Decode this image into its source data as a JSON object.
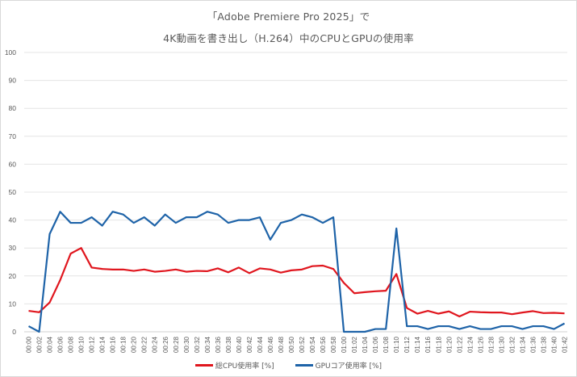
{
  "title": {
    "line1": "「Adobe Premiere Pro 2025」で",
    "line2": "4K動画を書き出し（H.264）中のCPUとGPUの使用率"
  },
  "legend": {
    "cpu": "総CPU使用率 [%]",
    "gpu": "GPUコア使用率 [%]"
  },
  "colors": {
    "cpu": "#e0161e",
    "gpu": "#1e63a8",
    "grid": "#e4e4e4",
    "text": "#595959"
  },
  "chart_data": {
    "type": "line",
    "title": "「Adobe Premiere Pro 2025」で 4K動画を書き出し（H.264）中のCPUとGPUの使用率",
    "xlabel": "",
    "ylabel": "",
    "ylim": [
      0,
      100
    ],
    "yticks": [
      0,
      10,
      20,
      30,
      40,
      50,
      60,
      70,
      80,
      90,
      100
    ],
    "grid": true,
    "legend_position": "bottom",
    "categories": [
      "00:00",
      "00:02",
      "00:04",
      "00:06",
      "00:08",
      "00:10",
      "00:12",
      "00:14",
      "00:16",
      "00:18",
      "00:20",
      "00:22",
      "00:24",
      "00:26",
      "00:28",
      "00:30",
      "00:32",
      "00:34",
      "00:36",
      "00:38",
      "00:40",
      "00:42",
      "00:44",
      "00:46",
      "00:48",
      "00:50",
      "00:52",
      "00:54",
      "00:56",
      "00:58",
      "01:00",
      "01:02",
      "01:04",
      "01:06",
      "01:08",
      "01:10",
      "01:12",
      "01:14",
      "01:16",
      "01:18",
      "01:20",
      "01:22",
      "01:24",
      "01:26",
      "01:28",
      "01:30",
      "01:32",
      "01:34",
      "01:36",
      "01:38",
      "01:40",
      "01:42"
    ],
    "series": [
      {
        "name": "総CPU使用率 [%]",
        "color": "#e0161e",
        "values": [
          7.5,
          7,
          10.5,
          18.5,
          28,
          30,
          23,
          22.5,
          22.3,
          22.3,
          21.8,
          22.3,
          21.5,
          21.8,
          22.3,
          21.5,
          21.8,
          21.7,
          22.7,
          21.3,
          23,
          21,
          22.7,
          22.3,
          21.2,
          22,
          22.3,
          23.5,
          23.7,
          22.5,
          17.5,
          13.8,
          14.2,
          14.5,
          14.7,
          20.7,
          8.5,
          6.5,
          7.5,
          6.5,
          7.3,
          5.5,
          7.2,
          7,
          6.9,
          6.9,
          6.3,
          6.9,
          7.4,
          6.7,
          6.8,
          6.6
        ]
      },
      {
        "name": "GPUコア使用率 [%]",
        "color": "#1e63a8",
        "values": [
          2,
          0,
          35,
          43,
          39,
          39,
          41,
          38,
          43,
          42,
          39,
          41,
          38,
          42,
          39,
          41,
          41,
          43,
          42,
          39,
          40,
          40,
          41,
          33,
          39,
          40,
          42,
          41,
          39,
          41,
          0,
          0,
          0,
          1,
          1,
          37,
          2,
          2,
          1,
          2,
          2,
          1,
          2,
          1,
          1,
          2,
          2,
          1,
          2,
          2,
          1,
          3
        ]
      }
    ]
  }
}
